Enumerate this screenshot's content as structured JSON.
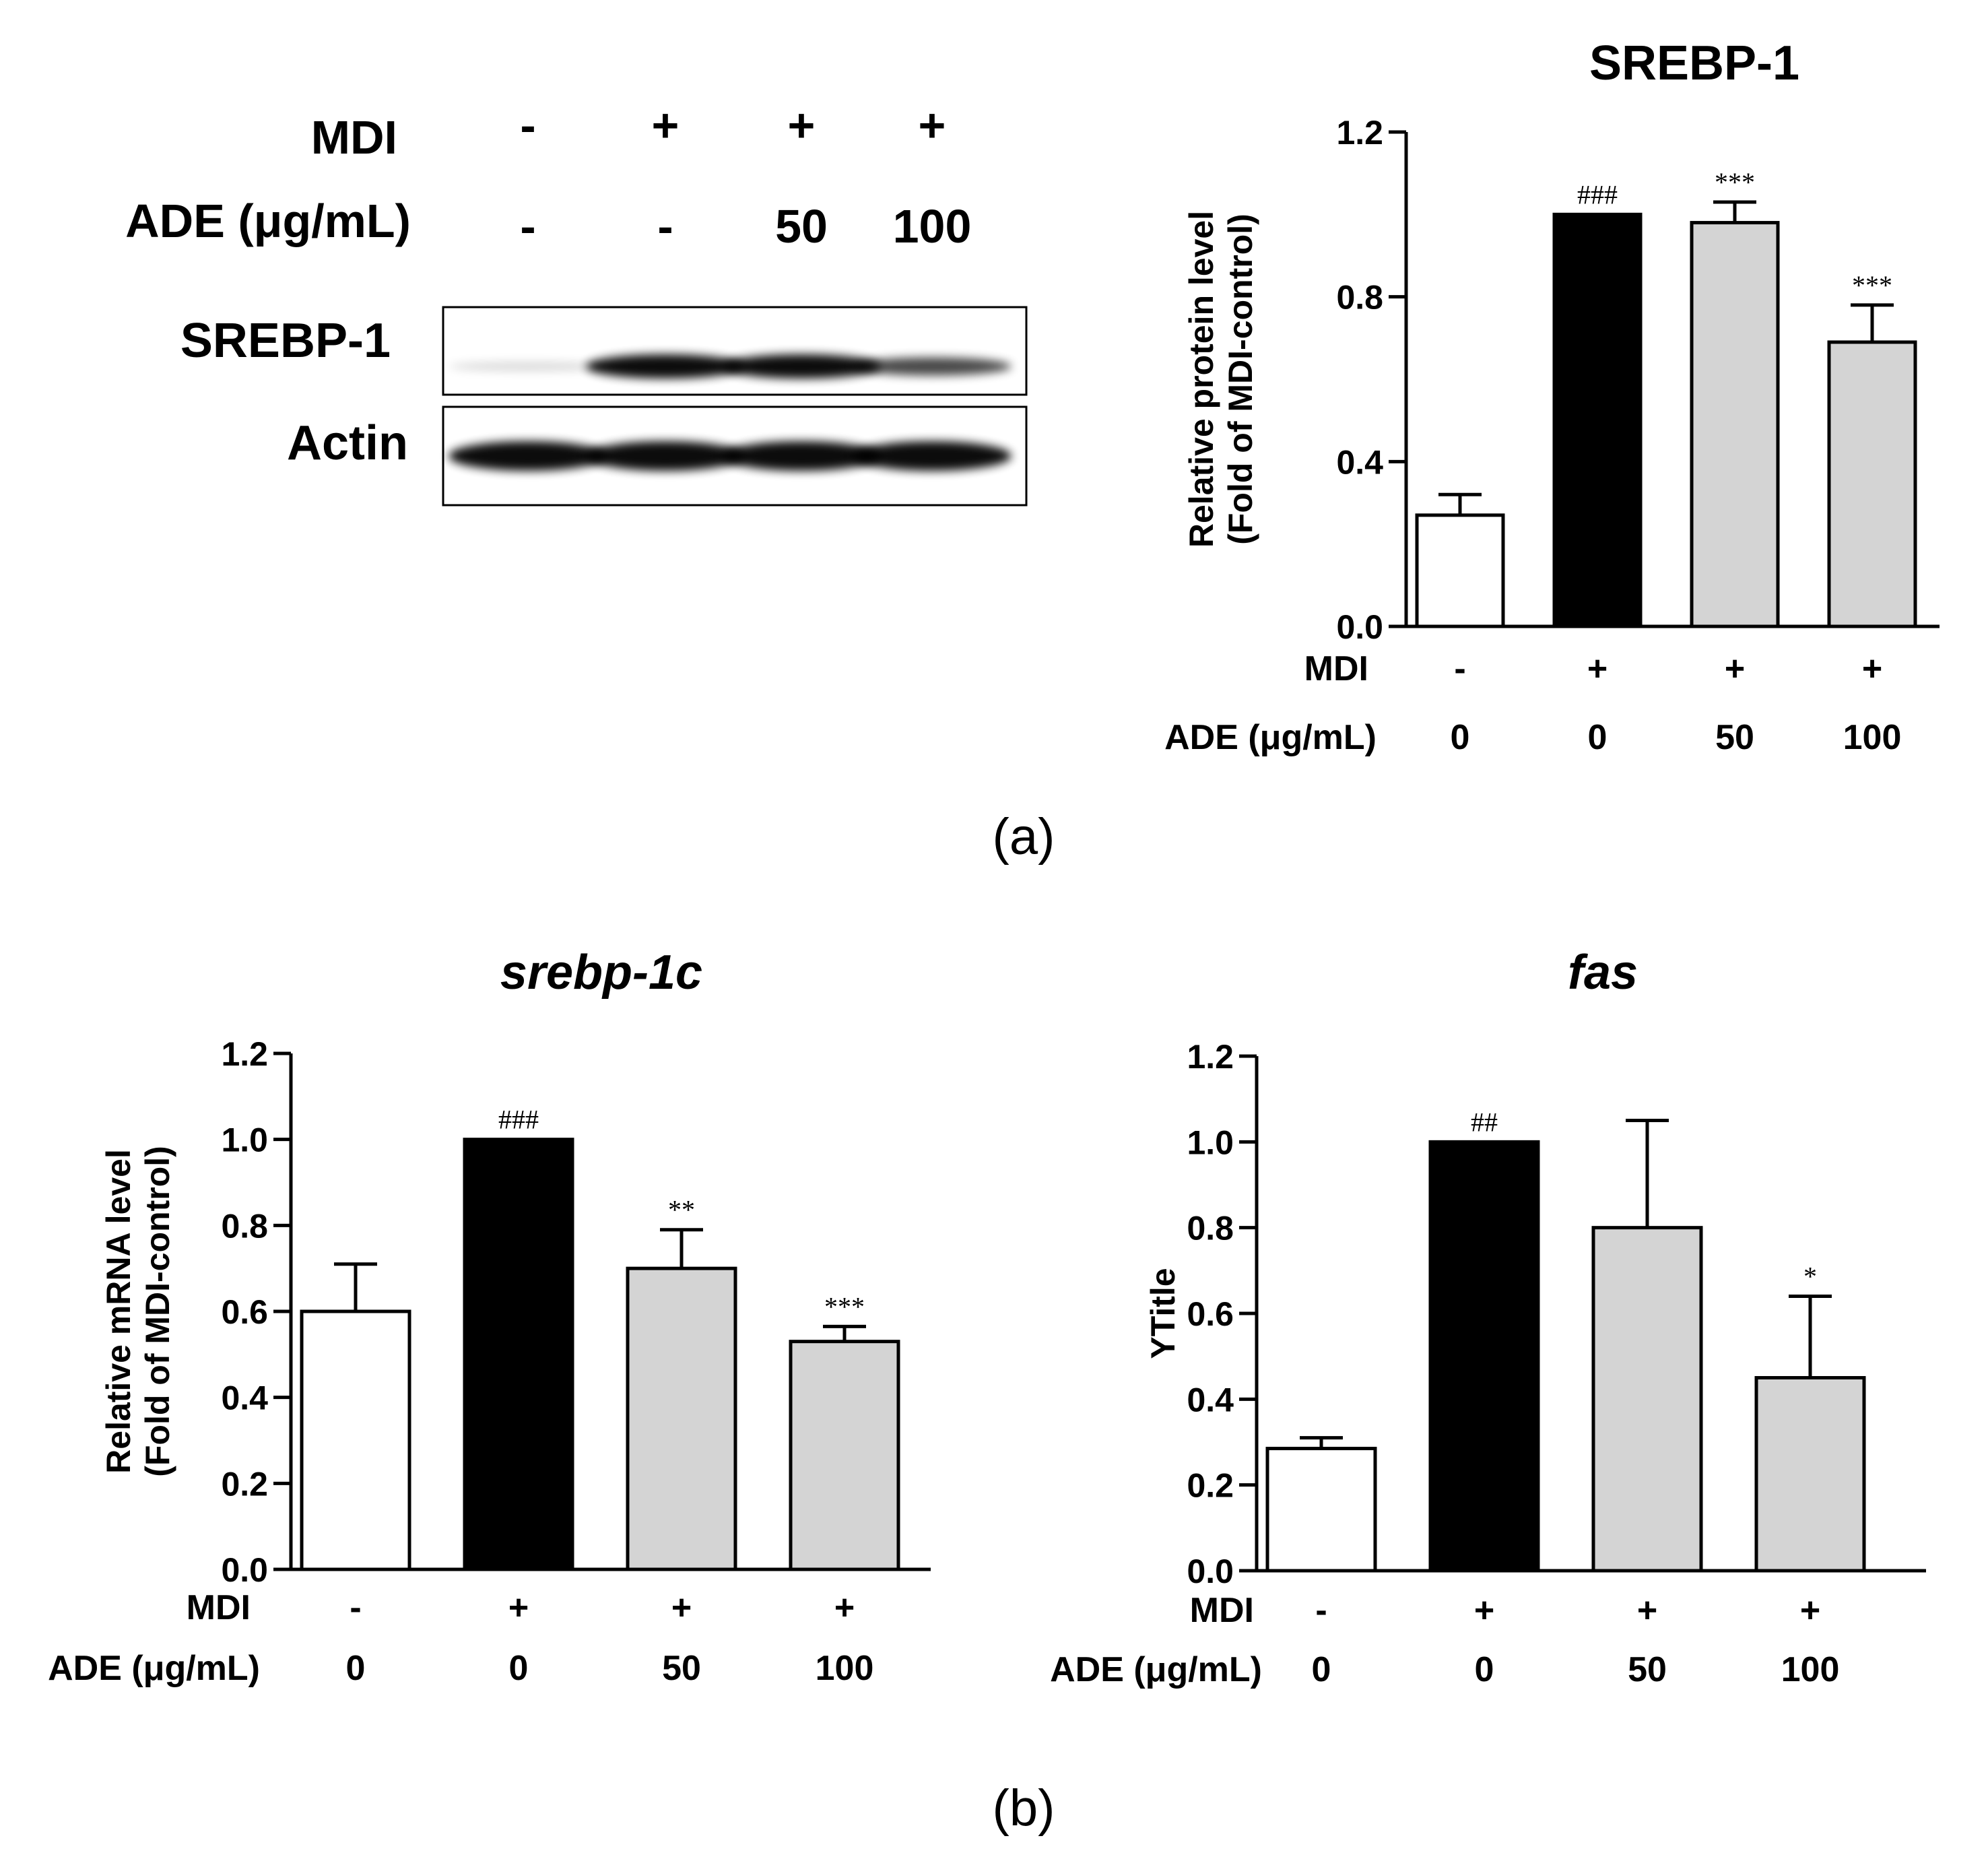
{
  "panel_labels": {
    "a": "(a)",
    "b": "(b)"
  },
  "blot": {
    "row_labels": [
      "MDI",
      "ADE (μg/mL)"
    ],
    "lanes": [
      {
        "mdi": "-",
        "ade": "-"
      },
      {
        "mdi": "+",
        "ade": "-"
      },
      {
        "mdi": "+",
        "ade": "50"
      },
      {
        "mdi": "+",
        "ade": "100"
      }
    ],
    "band_labels": [
      "SREBP-1",
      "Actin"
    ],
    "band_intensity": {
      "srebp1": [
        0.15,
        1.0,
        1.0,
        0.75
      ],
      "actin": [
        1.0,
        1.0,
        1.0,
        1.0
      ]
    }
  },
  "row_label_mdi": "MDI",
  "row_label_ade": "ADE (μg/mL)",
  "chart_data": [
    {
      "type": "bar",
      "title": "SREBP-1",
      "title_italic": false,
      "ylabel_lines": [
        "Relative protein level",
        "(Fold of MDI-control)"
      ],
      "ylim": [
        0,
        1.2
      ],
      "yticks": [
        "0.0",
        "0.4",
        "0.8",
        "1.2"
      ],
      "categories_mdi": [
        "-",
        "+",
        "+",
        "+"
      ],
      "categories_ade": [
        "0",
        "0",
        "50",
        "100"
      ],
      "values": [
        0.27,
        1.0,
        0.98,
        0.69
      ],
      "errors": [
        0.05,
        0.0,
        0.05,
        0.09
      ],
      "bar_colors": [
        "#ffffff",
        "#000000",
        "#d4d4d4",
        "#d4d4d4"
      ],
      "annotations": [
        "",
        "###",
        "***",
        "***"
      ]
    },
    {
      "type": "bar",
      "title": "srebp-1c",
      "title_italic": true,
      "ylabel_lines": [
        "Relative mRNA level",
        "(Fold of MDI-control)"
      ],
      "ylim": [
        0,
        1.2
      ],
      "yticks": [
        "0.0",
        "0.2",
        "0.4",
        "0.6",
        "0.8",
        "1.0",
        "1.2"
      ],
      "categories_mdi": [
        "-",
        "+",
        "+",
        "+"
      ],
      "categories_ade": [
        "0",
        "0",
        "50",
        "100"
      ],
      "values": [
        0.6,
        1.0,
        0.7,
        0.53
      ],
      "errors": [
        0.11,
        0.0,
        0.09,
        0.035
      ],
      "bar_colors": [
        "#ffffff",
        "#000000",
        "#d4d4d4",
        "#d4d4d4"
      ],
      "annotations": [
        "",
        "###",
        "**",
        "***"
      ]
    },
    {
      "type": "bar",
      "title": "fas",
      "title_italic": true,
      "ylabel_lines": [
        "YTitle"
      ],
      "ylim": [
        0,
        1.2
      ],
      "yticks": [
        "0.0",
        "0.2",
        "0.4",
        "0.6",
        "0.8",
        "1.0",
        "1.2"
      ],
      "categories_mdi": [
        "-",
        "+",
        "+",
        "+"
      ],
      "categories_ade": [
        "0",
        "0",
        "50",
        "100"
      ],
      "values": [
        0.285,
        1.0,
        0.8,
        0.45
      ],
      "errors": [
        0.025,
        0.0,
        0.25,
        0.19
      ],
      "bar_colors": [
        "#ffffff",
        "#000000",
        "#d4d4d4",
        "#d4d4d4"
      ],
      "annotations": [
        "",
        "##",
        "",
        "*"
      ]
    }
  ]
}
